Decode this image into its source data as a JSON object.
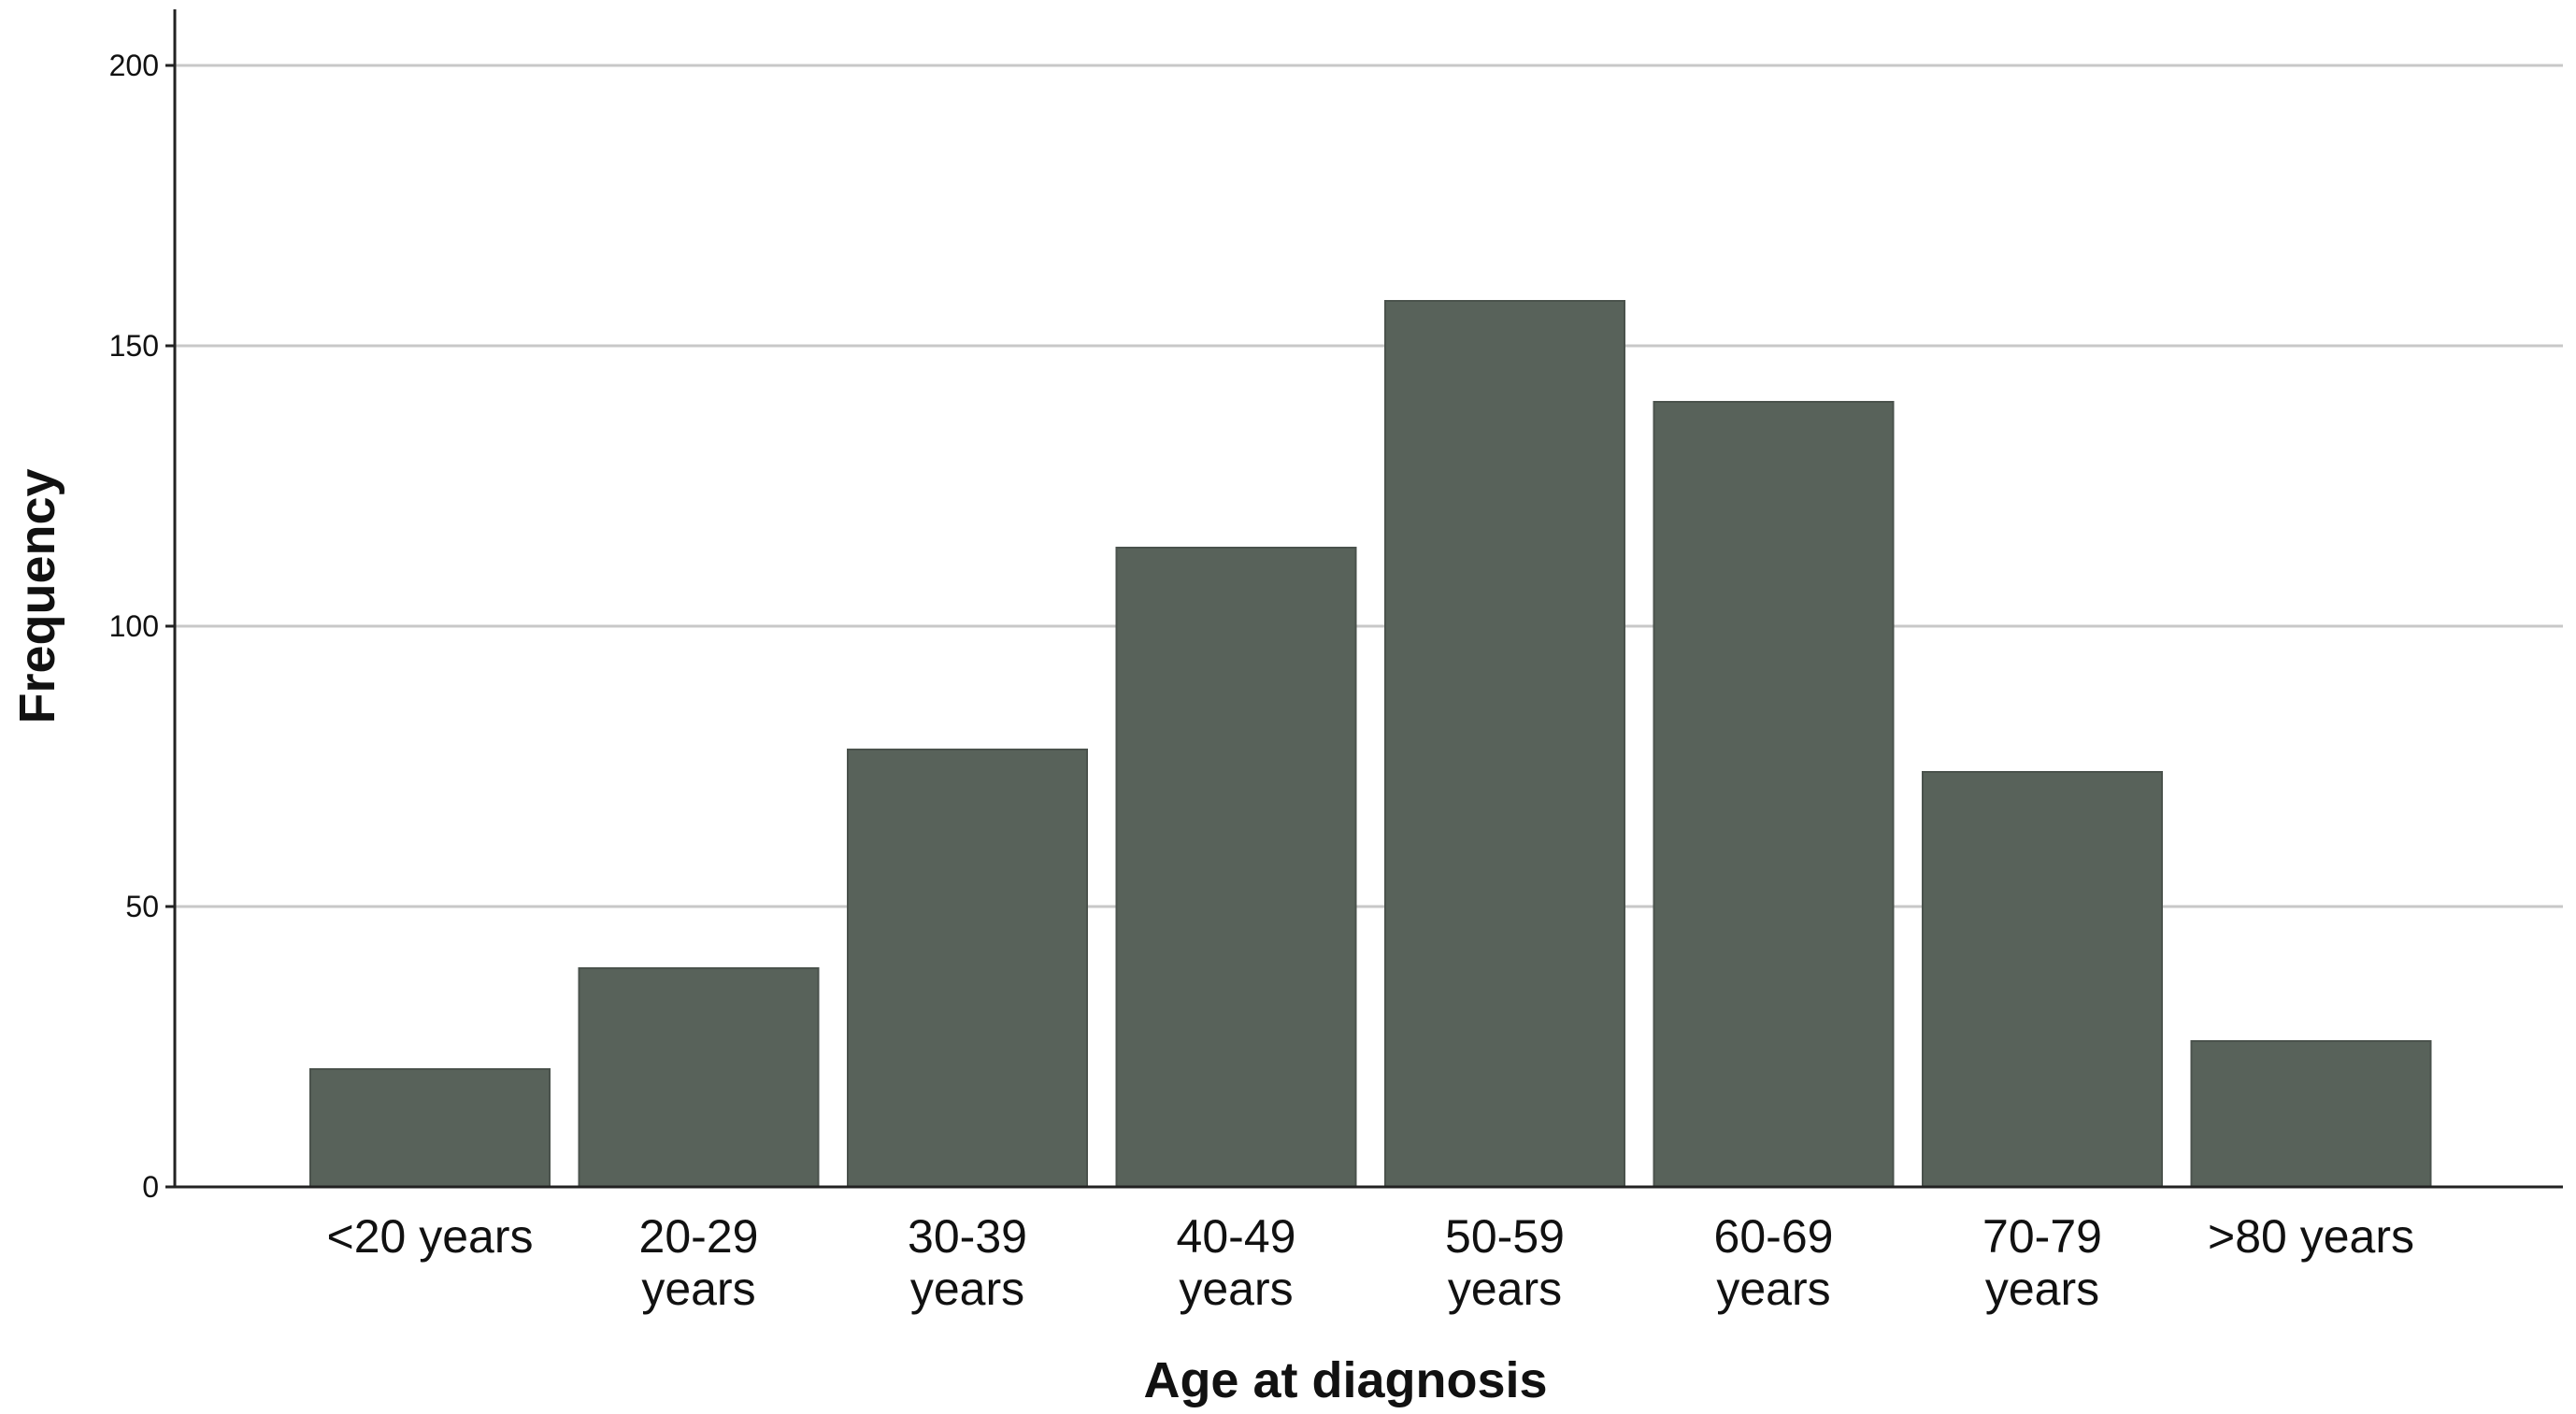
{
  "chart_data": {
    "type": "bar",
    "title": "",
    "xlabel": "Age at diagnosis",
    "ylabel": "Frequency",
    "categories": [
      [
        "<20 years"
      ],
      [
        "20-29",
        "years"
      ],
      [
        "30-39",
        "years"
      ],
      [
        "40-49",
        "years"
      ],
      [
        "50-59",
        "years"
      ],
      [
        "60-69",
        "years"
      ],
      [
        "70-79",
        "years"
      ],
      [
        ">80 years"
      ]
    ],
    "values": [
      21,
      39,
      78,
      114,
      158,
      140,
      74,
      26
    ],
    "ylim": [
      0,
      210
    ],
    "yticks": [
      0,
      50,
      100,
      150,
      200
    ],
    "grid": "horizontal",
    "legend": "none",
    "colors": {
      "bar": "#58625a",
      "bar_edge": "#4a524c",
      "grid": "#c8c8c8",
      "axis": "#222222"
    }
  }
}
